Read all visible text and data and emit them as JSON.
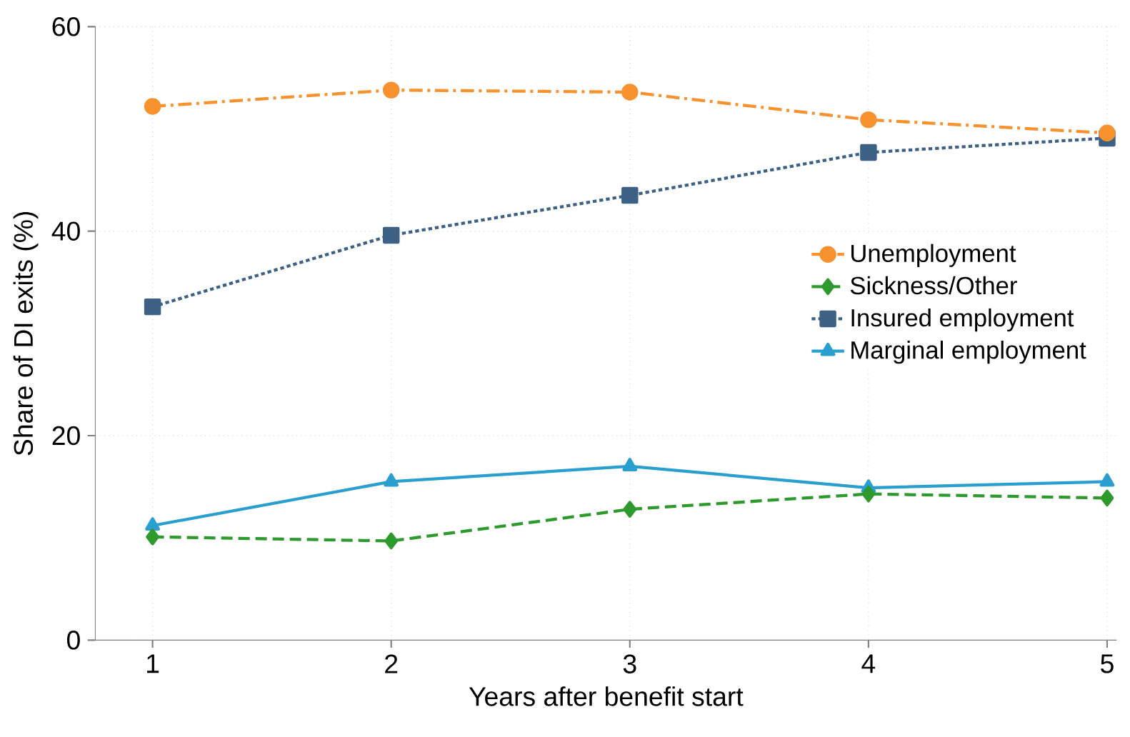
{
  "chart_data": {
    "type": "line",
    "xlabel": "Years after benefit start",
    "ylabel": "Share of DI exits (%)",
    "x": [
      1,
      2,
      3,
      4,
      5
    ],
    "xlim": [
      0.76,
      5.04
    ],
    "xticks": [
      1,
      2,
      3,
      4,
      5
    ],
    "ylim": [
      0,
      60
    ],
    "yticks": [
      0,
      20,
      40,
      60
    ],
    "grid": true,
    "legend": "right",
    "series": [
      {
        "name": "Unemployment",
        "color": "#f7922f",
        "values": [
          52.2,
          53.8,
          53.6,
          50.9,
          49.6
        ],
        "marker": "circle",
        "line_style": "dashdot"
      },
      {
        "name": "Sickness/Other",
        "color": "#2e9a2e",
        "values": [
          10.1,
          9.7,
          12.8,
          14.3,
          13.9
        ],
        "marker": "diamond",
        "line_style": "dashed"
      },
      {
        "name": "Insured employment",
        "color": "#3d6185",
        "values": [
          32.6,
          39.6,
          43.5,
          47.7,
          49.1
        ],
        "marker": "square",
        "line_style": "dotted"
      },
      {
        "name": "Marginal employment",
        "color": "#2a9fcf",
        "values": [
          11.2,
          15.5,
          17.0,
          14.9,
          15.5
        ],
        "marker": "triangle",
        "line_style": "solid"
      }
    ]
  }
}
